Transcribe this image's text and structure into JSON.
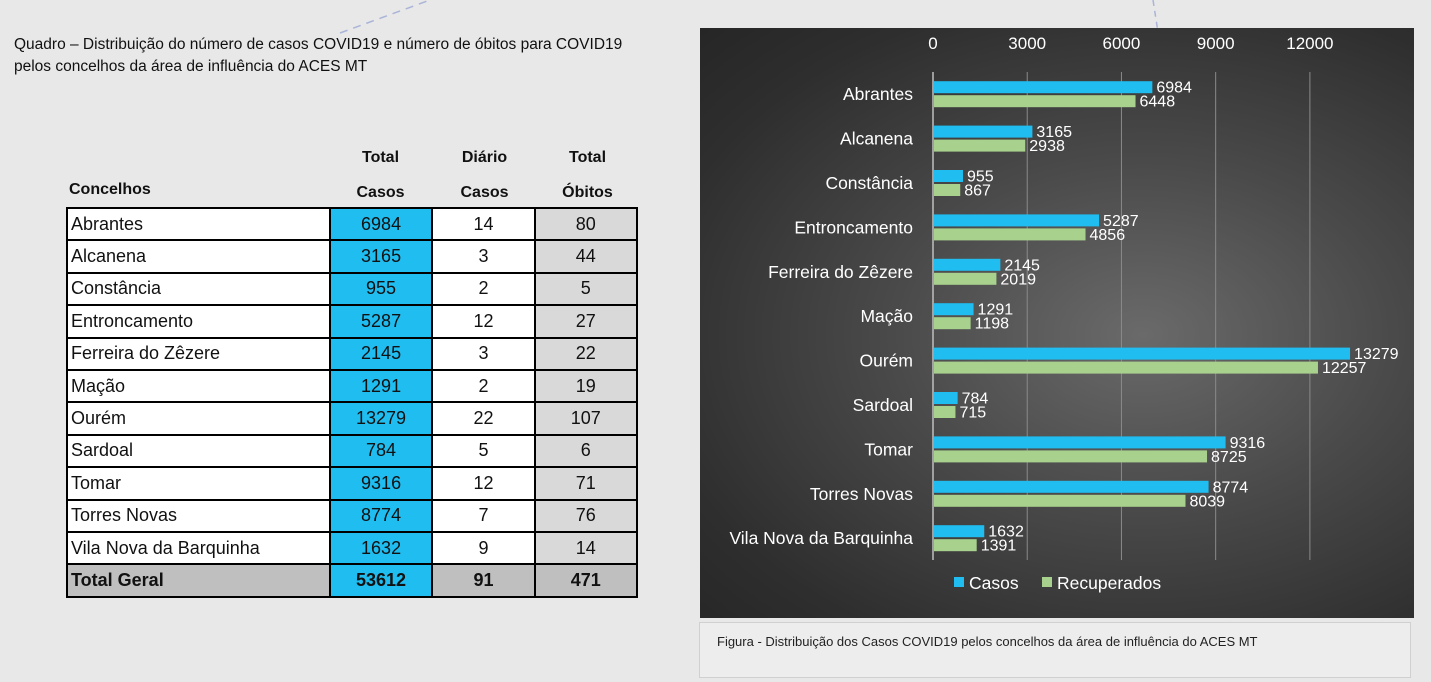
{
  "quadro": {
    "title_line1": "Quadro – Distribuição do número de casos COVID19 e número de óbitos para COVID19",
    "title_line2": "pelos concelhos da área de influência do ACES MT"
  },
  "table": {
    "headers": {
      "concelhos": "Concelhos",
      "total_casos": [
        "Total",
        "Casos"
      ],
      "diario_casos": [
        "Diário",
        "Casos"
      ],
      "total_obitos": [
        "Total",
        "Óbitos"
      ]
    },
    "rows": [
      {
        "concelho": "Abrantes",
        "casos": "6984",
        "diario": "14",
        "obitos": "80"
      },
      {
        "concelho": "Alcanena",
        "casos": "3165",
        "diario": "3",
        "obitos": "44"
      },
      {
        "concelho": "Constância",
        "casos": "955",
        "diario": "2",
        "obitos": "5"
      },
      {
        "concelho": "Entroncamento",
        "casos": "5287",
        "diario": "12",
        "obitos": "27"
      },
      {
        "concelho": "Ferreira do Zêzere",
        "casos": "2145",
        "diario": "3",
        "obitos": "22"
      },
      {
        "concelho": "Mação",
        "casos": "1291",
        "diario": "2",
        "obitos": "19"
      },
      {
        "concelho": "Ourém",
        "casos": "13279",
        "diario": "22",
        "obitos": "107"
      },
      {
        "concelho": "Sardoal",
        "casos": "784",
        "diario": "5",
        "obitos": "6"
      },
      {
        "concelho": "Tomar",
        "casos": "9316",
        "diario": "12",
        "obitos": "71"
      },
      {
        "concelho": "Torres Novas",
        "casos": "8774",
        "diario": "7",
        "obitos": "76"
      },
      {
        "concelho": "Vila Nova da Barquinha",
        "casos": "1632",
        "diario": "9",
        "obitos": "14"
      }
    ],
    "total": {
      "label": "Total Geral",
      "casos": "53612",
      "diario": "91",
      "obitos": "471"
    }
  },
  "chart_data": {
    "type": "bar",
    "orientation": "horizontal",
    "categories": [
      "Abrantes",
      "Alcanena",
      "Constância",
      "Entroncamento",
      "Ferreira do Zêzere",
      "Mação",
      "Ourém",
      "Sardoal",
      "Tomar",
      "Torres Novas",
      "Vila Nova da Barquinha"
    ],
    "series": [
      {
        "name": "Casos",
        "color": "#1fbdf0",
        "values": [
          6984,
          3165,
          955,
          5287,
          2145,
          1291,
          13279,
          784,
          9316,
          8774,
          1632
        ]
      },
      {
        "name": "Recuperados",
        "color": "#a9d18e",
        "values": [
          6448,
          2938,
          867,
          4856,
          2019,
          1198,
          12257,
          715,
          8725,
          8039,
          1391
        ]
      }
    ],
    "xlim": [
      0,
      13500
    ],
    "xticks": [
      0,
      3000,
      6000,
      9000,
      12000
    ],
    "xaxis_position": "top",
    "grid": true,
    "legend": "bottom",
    "data_labels": true,
    "background": "#3c3c3c"
  },
  "figure_caption": "Figura -  Distribuição dos Casos COVID19 pelos concelhos da área de influência do ACES MT"
}
